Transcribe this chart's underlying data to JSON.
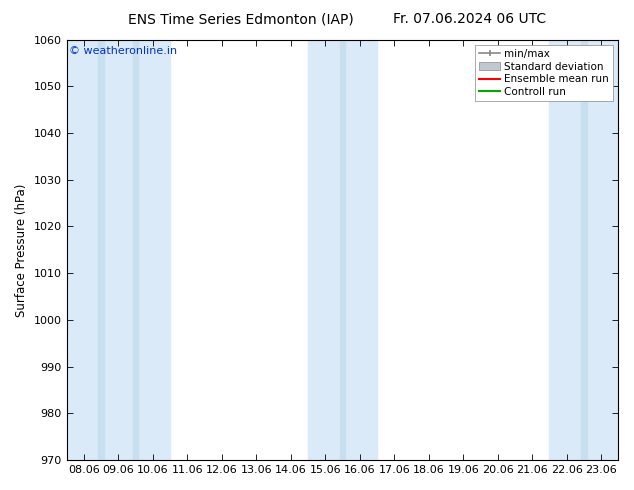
{
  "title_left": "ENS Time Series Edmonton (IAP)",
  "title_right": "Fr. 07.06.2024 06 UTC",
  "ylabel": "Surface Pressure (hPa)",
  "ylim": [
    970,
    1060
  ],
  "yticks": [
    970,
    980,
    990,
    1000,
    1010,
    1020,
    1030,
    1040,
    1050,
    1060
  ],
  "x_labels": [
    "08.06",
    "09.06",
    "10.06",
    "11.06",
    "12.06",
    "13.06",
    "14.06",
    "15.06",
    "16.06",
    "17.06",
    "18.06",
    "19.06",
    "20.06",
    "21.06",
    "22.06",
    "23.06"
  ],
  "x_positions": [
    0,
    1,
    2,
    3,
    4,
    5,
    6,
    7,
    8,
    9,
    10,
    11,
    12,
    13,
    14,
    15
  ],
  "shaded_bands": [
    0,
    1,
    2,
    7,
    8,
    14,
    15
  ],
  "band_color_dark": "#c8dff0",
  "band_color_light": "#daeaf8",
  "background_color": "#ffffff",
  "plot_bg_color": "#ffffff",
  "legend_items": [
    "min/max",
    "Standard deviation",
    "Ensemble mean run",
    "Controll run"
  ],
  "legend_colors": [
    "#888888",
    "#c0c8d0",
    "#ff0000",
    "#00aa00"
  ],
  "watermark": "© weatheronline.in",
  "watermark_color": "#0033cc",
  "title_fontsize": 10,
  "axis_fontsize": 8.5,
  "tick_fontsize": 8
}
